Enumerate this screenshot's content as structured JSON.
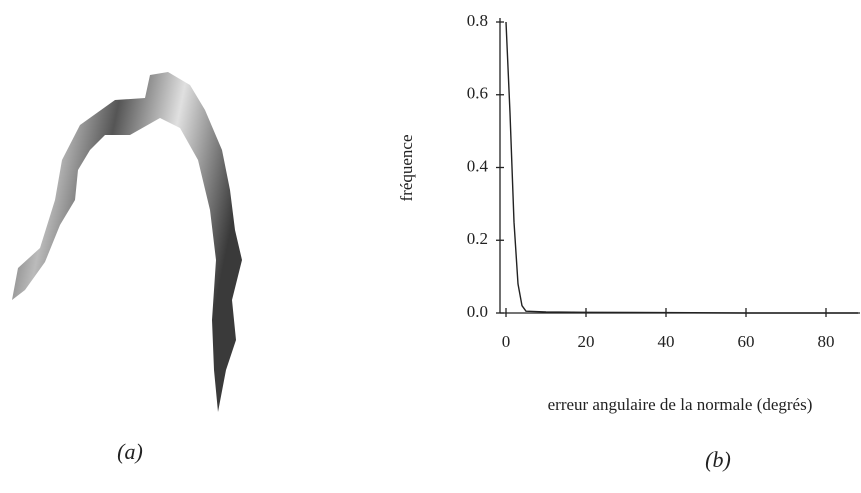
{
  "chart_data": {
    "type": "line",
    "xlabel": "erreur angulaire de la normale (degrés)",
    "ylabel": "fréquence",
    "x": [
      0,
      1,
      2,
      3,
      4,
      5,
      10,
      20,
      40,
      60,
      80,
      88
    ],
    "series": [
      {
        "name": null,
        "color": "#222222",
        "values": [
          0.8,
          0.55,
          0.25,
          0.08,
          0.02,
          0.005,
          0.003,
          0.002,
          0.001,
          0.0,
          0.0,
          0.0
        ]
      }
    ],
    "xlim": [
      -1.5,
      88.5
    ],
    "xticks": [
      0,
      20,
      40,
      60,
      80
    ],
    "ylim": [
      0,
      0.8
    ],
    "yticks": [
      {
        "value": 0,
        "label": "0.0"
      },
      0.2,
      0.4,
      0.6,
      0.8
    ],
    "grid": false
  },
  "captions": [
    "(a)",
    "(b)"
  ]
}
